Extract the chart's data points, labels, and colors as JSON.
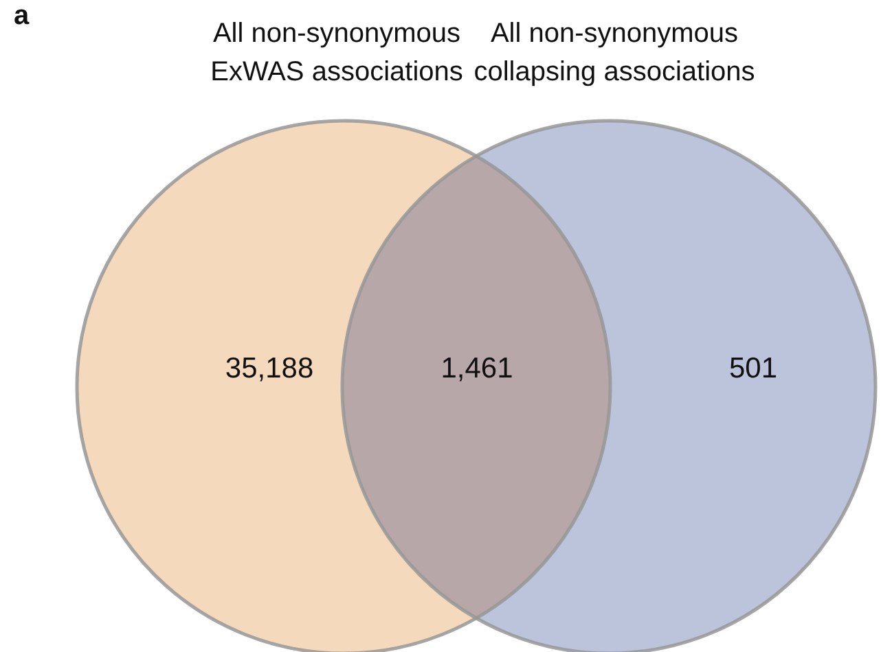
{
  "chart_data": {
    "type": "other",
    "annotations": [
      "a",
      "All non-synonymous ExWAS associations",
      "All non-synonymous collapsing associations"
    ],
    "categories": [
      null,
      null,
      null
    ],
    "values": [
      35188,
      1461,
      501
    ],
    "colors": [
      "#f5d9bd",
      "#b8a7a8",
      "#bcc4dc"
    ],
    "value_labels": [
      "35,188",
      "1,461",
      "501"
    ]
  }
}
